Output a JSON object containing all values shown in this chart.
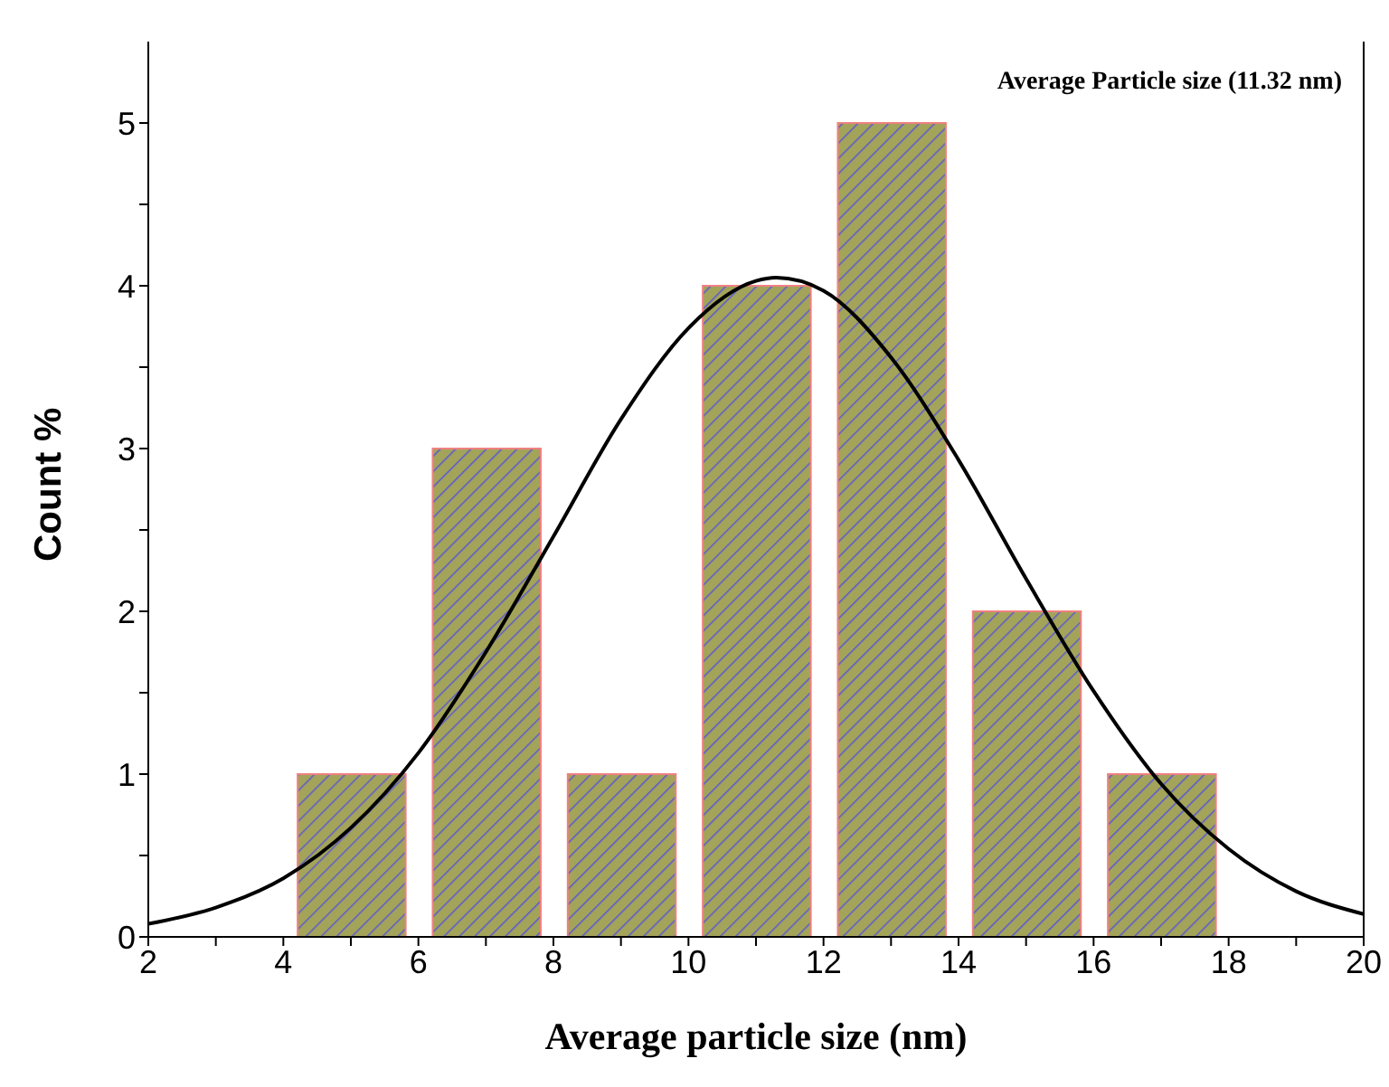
{
  "chart_data": {
    "type": "bar",
    "xlabel": "Average particle size (nm)",
    "ylabel": "Count %",
    "annotations": [
      "Average Particle size (11.32 nm)"
    ],
    "xlim": [
      2,
      20
    ],
    "ylim": [
      0,
      5.5
    ],
    "xticks": [
      2,
      {
        "value": 3,
        "label": null
      },
      4,
      {
        "value": 5,
        "label": null
      },
      6,
      {
        "value": 7,
        "label": null
      },
      8,
      {
        "value": 9,
        "label": null
      },
      10,
      {
        "value": 11,
        "label": null
      },
      12,
      {
        "value": 13,
        "label": null
      },
      14,
      {
        "value": 15,
        "label": null
      },
      16,
      {
        "value": 17,
        "label": null
      },
      18,
      {
        "value": 19,
        "label": null
      },
      20
    ],
    "yticks": [
      0,
      {
        "value": 0.5,
        "label": null
      },
      1,
      {
        "value": 1.5,
        "label": null
      },
      2,
      {
        "value": 2.5,
        "label": null
      },
      3,
      {
        "value": 3.5,
        "label": null
      },
      4,
      {
        "value": 4.5,
        "label": null
      },
      5
    ],
    "series": [
      {
        "type": "bar",
        "color": "#a3a35a",
        "x": [
          5,
          7,
          9,
          11,
          13,
          15,
          17
        ],
        "values": [
          1,
          3,
          1,
          4,
          5,
          2,
          1
        ]
      },
      {
        "type": "line",
        "color": "#000000",
        "x": [
          2,
          3,
          4,
          5,
          6,
          7,
          8,
          9,
          10,
          11,
          11.3,
          12,
          13,
          14,
          15,
          16,
          17,
          18,
          19,
          20
        ],
        "values": [
          0.08,
          0.18,
          0.36,
          0.67,
          1.13,
          1.75,
          2.46,
          3.18,
          3.74,
          4.03,
          4.05,
          3.97,
          3.56,
          2.93,
          2.2,
          1.51,
          0.94,
          0.54,
          0.28,
          0.14
        ]
      }
    ]
  }
}
